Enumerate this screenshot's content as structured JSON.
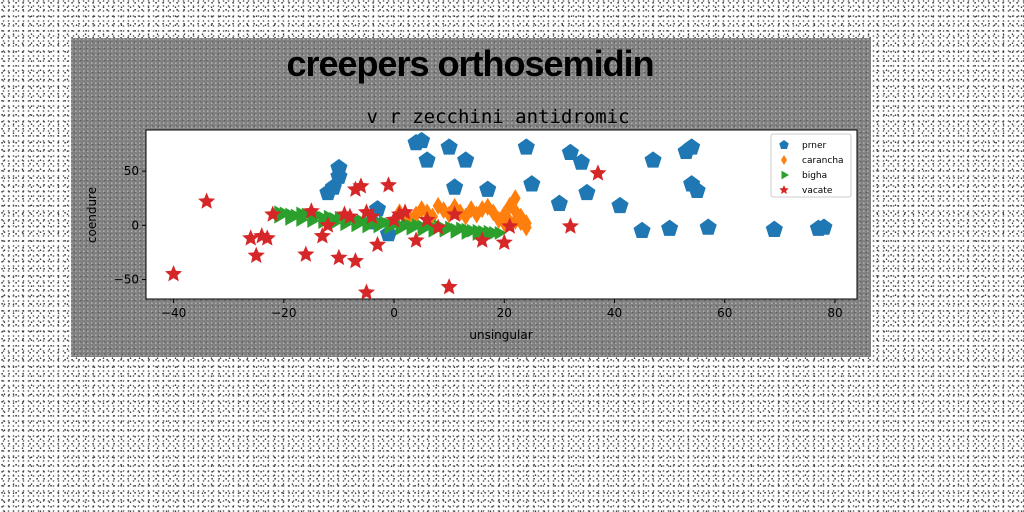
{
  "chart_data": {
    "type": "scatter",
    "title": "creepers orthosemidin",
    "subtitle": "v r zecchini antidromic",
    "xlabel": "unsingular",
    "ylabel": "coendure",
    "xlim": [
      -45,
      84
    ],
    "ylim": [
      -68,
      88
    ],
    "xticks": [
      -40,
      -20,
      0,
      20,
      40,
      60,
      80
    ],
    "yticks": [
      -50,
      0,
      50
    ],
    "grid": false,
    "legend_position": "top-right",
    "series": [
      {
        "name": "prner",
        "marker": "pentagon",
        "color": "#1f77b4",
        "points": [
          [
            4,
            76
          ],
          [
            5,
            78
          ],
          [
            6,
            60
          ],
          [
            10,
            72
          ],
          [
            13,
            60
          ],
          [
            24,
            72
          ],
          [
            32,
            67
          ],
          [
            34,
            58
          ],
          [
            47,
            60
          ],
          [
            53,
            68
          ],
          [
            54,
            72
          ],
          [
            -10,
            53
          ],
          [
            -10,
            45
          ],
          [
            -11,
            35
          ],
          [
            -12,
            30
          ],
          [
            -3,
            15
          ],
          [
            -1,
            -8
          ],
          [
            -4,
            3
          ],
          [
            11,
            35
          ],
          [
            17,
            33
          ],
          [
            25,
            38
          ],
          [
            30,
            20
          ],
          [
            35,
            30
          ],
          [
            41,
            18
          ],
          [
            45,
            -5
          ],
          [
            50,
            -3
          ],
          [
            54,
            38
          ],
          [
            55,
            32
          ],
          [
            57,
            -2
          ],
          [
            69,
            -4
          ],
          [
            77,
            -3
          ],
          [
            78,
            -2
          ]
        ]
      },
      {
        "name": "carancha",
        "marker": "diamond",
        "color": "#ff7f0e",
        "points": [
          [
            1,
            12
          ],
          [
            2,
            8
          ],
          [
            3,
            5
          ],
          [
            4,
            10
          ],
          [
            5,
            15
          ],
          [
            6,
            12
          ],
          [
            7,
            8
          ],
          [
            8,
            18
          ],
          [
            9,
            14
          ],
          [
            10,
            10
          ],
          [
            11,
            17
          ],
          [
            12,
            12
          ],
          [
            13,
            8
          ],
          [
            14,
            15
          ],
          [
            15,
            10
          ],
          [
            16,
            15
          ],
          [
            17,
            17
          ],
          [
            18,
            12
          ],
          [
            19,
            5
          ],
          [
            20,
            10
          ],
          [
            21,
            18
          ],
          [
            22,
            25
          ],
          [
            22,
            13
          ],
          [
            23,
            8
          ],
          [
            23,
            3
          ],
          [
            24,
            2
          ],
          [
            20,
            2
          ],
          [
            21,
            3
          ],
          [
            22,
            4
          ],
          [
            24,
            -2
          ]
        ]
      },
      {
        "name": "bigha",
        "marker": "triangle-right",
        "color": "#2ca02c",
        "points": [
          [
            -21,
            12
          ],
          [
            -20,
            11
          ],
          [
            -19,
            10
          ],
          [
            -18,
            9
          ],
          [
            -17,
            11
          ],
          [
            -16,
            10
          ],
          [
            -15,
            8
          ],
          [
            -14,
            9
          ],
          [
            -13,
            7
          ],
          [
            -12,
            8
          ],
          [
            -11,
            6
          ],
          [
            -10,
            7
          ],
          [
            -9,
            5
          ],
          [
            -8,
            6
          ],
          [
            -7,
            5
          ],
          [
            -6,
            4
          ],
          [
            -5,
            3
          ],
          [
            -4,
            4
          ],
          [
            -3,
            2
          ],
          [
            -2,
            3
          ],
          [
            -1,
            1
          ],
          [
            0,
            2
          ],
          [
            1,
            0
          ],
          [
            2,
            1
          ],
          [
            3,
            -1
          ],
          [
            4,
            0
          ],
          [
            5,
            -1
          ],
          [
            6,
            0
          ],
          [
            7,
            -2
          ],
          [
            8,
            -1
          ],
          [
            9,
            -3
          ],
          [
            10,
            -2
          ],
          [
            11,
            -4
          ],
          [
            12,
            -3
          ],
          [
            13,
            -4
          ],
          [
            14,
            -5
          ],
          [
            15,
            -5
          ],
          [
            16,
            -6
          ],
          [
            17,
            -6
          ],
          [
            18,
            -7
          ],
          [
            19,
            -7
          ],
          [
            -21,
            8
          ],
          [
            -19,
            6
          ],
          [
            -17,
            5
          ],
          [
            -15,
            4
          ],
          [
            -13,
            3
          ],
          [
            -11,
            2
          ],
          [
            -9,
            1
          ],
          [
            -7,
            0
          ],
          [
            -5,
            -1
          ],
          [
            -3,
            -1
          ],
          [
            -1,
            -2
          ],
          [
            1,
            -3
          ],
          [
            3,
            -3
          ],
          [
            5,
            -4
          ],
          [
            7,
            -5
          ],
          [
            9,
            -5
          ],
          [
            11,
            -6
          ],
          [
            13,
            -7
          ],
          [
            15,
            -8
          ],
          [
            17,
            -8
          ]
        ]
      },
      {
        "name": "vacate",
        "marker": "star",
        "color": "#d62728",
        "points": [
          [
            -40,
            -45
          ],
          [
            -34,
            22
          ],
          [
            -26,
            -12
          ],
          [
            -25,
            -28
          ],
          [
            -24,
            -10
          ],
          [
            -23,
            -12
          ],
          [
            -22,
            10
          ],
          [
            -16,
            -27
          ],
          [
            -15,
            13
          ],
          [
            -13,
            -10
          ],
          [
            -12,
            0
          ],
          [
            -10,
            -30
          ],
          [
            -9,
            10
          ],
          [
            -8,
            8
          ],
          [
            -7,
            33
          ],
          [
            -7,
            -33
          ],
          [
            -6,
            36
          ],
          [
            -5,
            -62
          ],
          [
            -4,
            8
          ],
          [
            -3,
            -18
          ],
          [
            -1,
            37
          ],
          [
            0,
            5
          ],
          [
            1,
            10
          ],
          [
            2,
            12
          ],
          [
            4,
            -14
          ],
          [
            6,
            5
          ],
          [
            8,
            -2
          ],
          [
            10,
            -57
          ],
          [
            11,
            10
          ],
          [
            16,
            -14
          ],
          [
            20,
            -16
          ],
          [
            21,
            -1
          ],
          [
            32,
            -1
          ],
          [
            37,
            48
          ],
          [
            -5,
            12
          ]
        ]
      }
    ]
  }
}
